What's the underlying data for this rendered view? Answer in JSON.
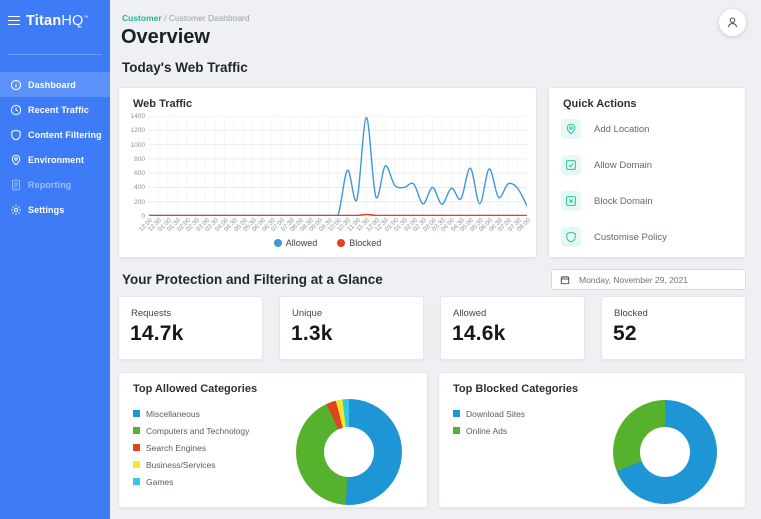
{
  "brand": {
    "logo_bold": "Titan",
    "logo_light": "HQ",
    "trademark": "™"
  },
  "sidebar": {
    "items": [
      {
        "label": "Dashboard",
        "icon": "dashboard",
        "active": true,
        "disabled": false
      },
      {
        "label": "Recent Traffic",
        "icon": "clock",
        "active": false,
        "disabled": false
      },
      {
        "label": "Content Filtering",
        "icon": "shield",
        "active": false,
        "disabled": false
      },
      {
        "label": "Environment",
        "icon": "location-pin",
        "active": false,
        "disabled": false
      },
      {
        "label": "Reporting",
        "icon": "document",
        "active": false,
        "disabled": true
      },
      {
        "label": "Settings",
        "icon": "gear",
        "active": false,
        "disabled": false
      }
    ]
  },
  "breadcrumb": {
    "section": "Customer",
    "separator": "/",
    "page": "Customer Dashboard"
  },
  "header": {
    "title": "Overview"
  },
  "sections": {
    "traffic_heading": "Today's Web Traffic",
    "glance_heading": "Your Protection and Filtering at a Glance"
  },
  "quick_actions": {
    "title": "Quick Actions",
    "items": [
      {
        "label": "Add Location",
        "icon": "location-pin"
      },
      {
        "label": "Allow Domain",
        "icon": "check-square"
      },
      {
        "label": "Block Domain",
        "icon": "x-square"
      },
      {
        "label": "Customise Policy",
        "icon": "shield"
      }
    ]
  },
  "glance": {
    "date_label": "Monday, November 29, 2021",
    "stats": [
      {
        "label": "Requests",
        "value": "14.7k"
      },
      {
        "label": "Unique",
        "value": "1.3k"
      },
      {
        "label": "Allowed",
        "value": "14.6k"
      },
      {
        "label": "Blocked",
        "value": "52"
      }
    ]
  },
  "colors": {
    "sidebar_blue": "#3e7cf7",
    "sidebar_active": "#5b91f8",
    "accent_teal": "#2bbfa4",
    "breadcrumb_link": "#27b598",
    "line_allowed": "#3d97dd",
    "line_blocked": "#e2431e"
  },
  "chart_data": [
    {
      "type": "line",
      "title": "Web Traffic",
      "x": [
        "12:00",
        "12:30",
        "01:00",
        "01:30",
        "02:00",
        "02:30",
        "03:00",
        "03:30",
        "04:00",
        "04:30",
        "05:00",
        "05:30",
        "06:00",
        "06:30",
        "07:00",
        "07:30",
        "08:00",
        "08:30",
        "09:00",
        "09:30",
        "10:00",
        "10:30",
        "11:00",
        "11:30",
        "12:00",
        "12:30",
        "01:00",
        "01:30",
        "02:00",
        "02:30",
        "03:00",
        "03:30",
        "04:00",
        "04:30",
        "05:00",
        "05:30",
        "06:00",
        "06:30",
        "07:00",
        "07:30",
        "08:00"
      ],
      "series": [
        {
          "name": "Allowed",
          "color": "#3d97dd",
          "values": [
            4,
            4,
            4,
            4,
            4,
            4,
            4,
            4,
            4,
            4,
            4,
            4,
            4,
            4,
            4,
            4,
            4,
            4,
            4,
            4,
            8,
            640,
            230,
            1380,
            270,
            700,
            430,
            400,
            450,
            170,
            400,
            165,
            390,
            240,
            670,
            170,
            660,
            260,
            450,
            390,
            140
          ]
        },
        {
          "name": "Blocked",
          "color": "#e2431e",
          "values": [
            2,
            2,
            2,
            2,
            2,
            2,
            2,
            2,
            2,
            2,
            2,
            2,
            2,
            2,
            2,
            2,
            2,
            2,
            2,
            2,
            2,
            6,
            8,
            22,
            10,
            8,
            6,
            5,
            6,
            5,
            5,
            5,
            6,
            5,
            6,
            5,
            5,
            5,
            6,
            5,
            5
          ]
        }
      ],
      "ylim": [
        0,
        1400
      ],
      "yticks": [
        0,
        200,
        400,
        600,
        800,
        1000,
        1200,
        1400
      ],
      "grid": true,
      "legend_position": "bottom"
    },
    {
      "type": "pie",
      "title": "Top Allowed Categories",
      "labels": [
        "Miscellaneous",
        "Computers and Technology",
        "Search Engines",
        "Business/Services",
        "Games"
      ],
      "values": [
        51,
        42,
        3,
        2,
        2
      ],
      "colors": [
        "#1e96d5",
        "#56b22c",
        "#e2431e",
        "#f0e92c",
        "#35c7e8"
      ],
      "legend_position": "left"
    },
    {
      "type": "pie",
      "title": "Top Blocked Categories",
      "labels": [
        "Download Sites",
        "Online Ads"
      ],
      "values": [
        69,
        31
      ],
      "colors": [
        "#1e96d5",
        "#56b22c"
      ],
      "legend_position": "left"
    }
  ]
}
